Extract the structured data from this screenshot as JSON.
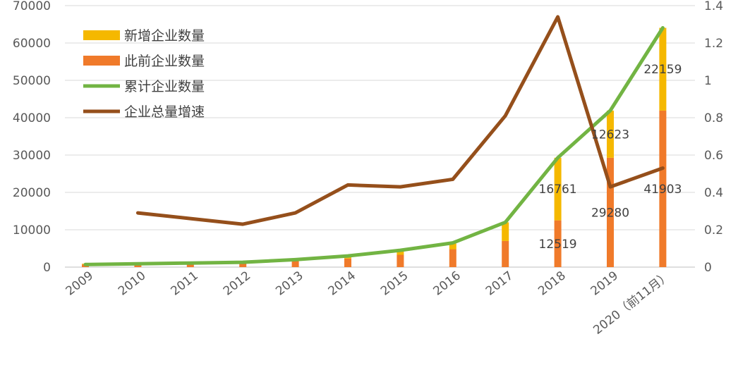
{
  "chart_data": {
    "type": "bar",
    "stacked": true,
    "title": "",
    "categories": [
      "2009",
      "2010",
      "2011",
      "2012",
      "2013",
      "2014",
      "2015",
      "2016",
      "2017",
      "2018",
      "2019",
      "2020（前11月）"
    ],
    "series": [
      {
        "name": "新增企业数量",
        "kind": "bar",
        "axis": "left",
        "color": "#F5B800",
        "values": [
          200,
          250,
          300,
          350,
          500,
          800,
          1000,
          1500,
          5000,
          16761,
          12623,
          22159
        ]
      },
      {
        "name": "此前企业数量",
        "kind": "bar",
        "axis": "left",
        "color": "#F07A2A",
        "values": [
          700,
          900,
          1100,
          1300,
          1800,
          2300,
          3300,
          4800,
          7000,
          12519,
          29280,
          41903
        ]
      },
      {
        "name": "累计企业数量",
        "kind": "line",
        "axis": "left",
        "color": "#72B443",
        "values": [
          700,
          900,
          1100,
          1300,
          2000,
          3000,
          4500,
          6500,
          12000,
          29280,
          41903,
          64062
        ]
      },
      {
        "name": "企业总量增速",
        "kind": "line",
        "axis": "right",
        "color": "#954F1B",
        "values": [
          null,
          0.29,
          0.26,
          0.23,
          0.29,
          0.44,
          0.43,
          0.47,
          0.81,
          1.34,
          0.43,
          0.53
        ]
      }
    ],
    "data_labels": [
      {
        "category": "2018",
        "series": "新增企业数量",
        "text": "16761"
      },
      {
        "category": "2018",
        "series": "此前企业数量",
        "text": "12519"
      },
      {
        "category": "2019",
        "series": "新增企业数量",
        "text": "12623"
      },
      {
        "category": "2019",
        "series": "此前企业数量",
        "text": "29280"
      },
      {
        "category": "2020（前11月）",
        "series": "新增企业数量",
        "text": "22159"
      },
      {
        "category": "2020（前11月）",
        "series": "此前企业数量",
        "text": "41903"
      }
    ],
    "y_left": {
      "ticks": [
        "0",
        "10000",
        "20000",
        "30000",
        "40000",
        "50000",
        "60000",
        "70000"
      ],
      "ylim": [
        0,
        70000
      ]
    },
    "y_right": {
      "ticks": [
        "0",
        "0.2",
        "0.4",
        "0.6",
        "0.8",
        "1",
        "1.2",
        "1.4"
      ],
      "ylim": [
        0,
        1.4
      ]
    },
    "grid": true,
    "legend_position": "top-left"
  }
}
